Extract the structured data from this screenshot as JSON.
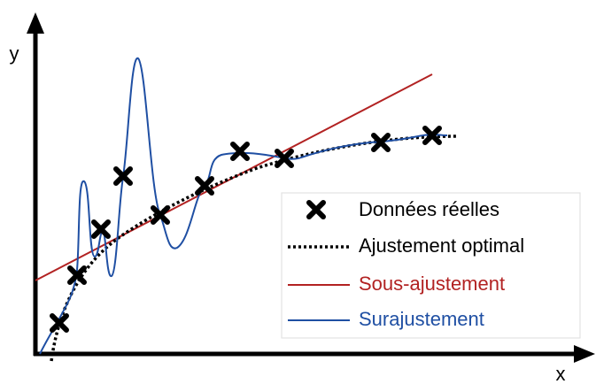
{
  "axes": {
    "x_label": "x",
    "y_label": "y"
  },
  "legend": {
    "items": [
      {
        "label": "Données réelles"
      },
      {
        "label": "Ajustement optimal"
      },
      {
        "label": "Sous-ajustement"
      },
      {
        "label": "Surajustement"
      }
    ]
  }
}
